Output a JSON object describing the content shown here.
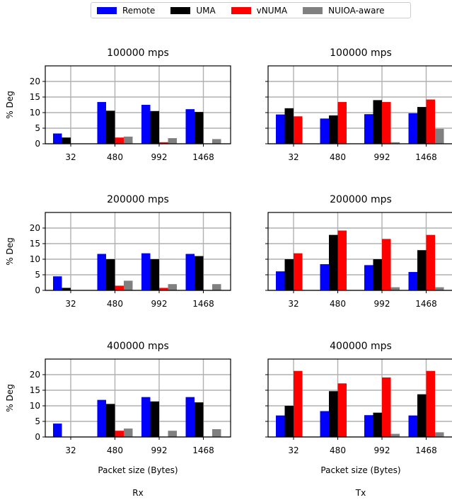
{
  "legend": {
    "items": [
      {
        "label": "Remote",
        "color": "#0000ff"
      },
      {
        "label": "UMA",
        "color": "#000000"
      },
      {
        "label": "vNUMA",
        "color": "#ff0000"
      },
      {
        "label": "NUIOA-aware",
        "color": "#808080"
      }
    ]
  },
  "columns": [
    "Rx",
    "Tx"
  ],
  "chart_data": [
    {
      "type": "bar",
      "title": "100000 mps",
      "side": "Rx",
      "categories": [
        "32",
        "480",
        "992",
        "1468"
      ],
      "ylabel": "% Deg",
      "xlabel": "",
      "ylim": [
        0,
        25
      ],
      "yticks": [
        0,
        5,
        10,
        15,
        20
      ],
      "grid": true,
      "series": [
        {
          "name": "Remote",
          "values": [
            3.3,
            13.4,
            12.5,
            11.1
          ]
        },
        {
          "name": "UMA",
          "values": [
            2.0,
            10.6,
            10.5,
            10.2
          ]
        },
        {
          "name": "vNUMA",
          "values": [
            0,
            2.0,
            0.5,
            0
          ]
        },
        {
          "name": "NUIOA-aware",
          "values": [
            0,
            2.3,
            1.8,
            1.5
          ]
        }
      ]
    },
    {
      "type": "bar",
      "title": "100000 mps",
      "side": "Tx",
      "categories": [
        "32",
        "480",
        "992",
        "1468"
      ],
      "ylabel": "",
      "xlabel": "",
      "ylim": [
        0,
        25
      ],
      "yticks": [
        0,
        5,
        10,
        15,
        20
      ],
      "grid": true,
      "series": [
        {
          "name": "Remote",
          "values": [
            9.4,
            8.1,
            9.5,
            9.8
          ]
        },
        {
          "name": "UMA",
          "values": [
            11.4,
            9.1,
            14.0,
            11.8
          ]
        },
        {
          "name": "vNUMA",
          "values": [
            8.8,
            13.4,
            13.4,
            14.2
          ]
        },
        {
          "name": "NUIOA-aware",
          "values": [
            0,
            0,
            0.5,
            4.8
          ]
        }
      ]
    },
    {
      "type": "bar",
      "title": "200000 mps",
      "side": "Rx",
      "categories": [
        "32",
        "480",
        "992",
        "1468"
      ],
      "ylabel": "% Deg",
      "xlabel": "",
      "ylim": [
        0,
        25
      ],
      "yticks": [
        0,
        5,
        10,
        15,
        20
      ],
      "grid": true,
      "series": [
        {
          "name": "Remote",
          "values": [
            4.5,
            11.7,
            11.9,
            11.7
          ]
        },
        {
          "name": "UMA",
          "values": [
            0.8,
            10.0,
            10.0,
            11.0
          ]
        },
        {
          "name": "vNUMA",
          "values": [
            0,
            1.5,
            0.8,
            0
          ]
        },
        {
          "name": "NUIOA-aware",
          "values": [
            0,
            3.1,
            2.0,
            2.0
          ]
        }
      ]
    },
    {
      "type": "bar",
      "title": "200000 mps",
      "side": "Tx",
      "categories": [
        "32",
        "480",
        "992",
        "1468"
      ],
      "ylabel": "",
      "xlabel": "",
      "ylim": [
        0,
        25
      ],
      "yticks": [
        0,
        5,
        10,
        15,
        20
      ],
      "grid": true,
      "series": [
        {
          "name": "Remote",
          "values": [
            6.1,
            8.4,
            8.1,
            5.9
          ]
        },
        {
          "name": "UMA",
          "values": [
            10.0,
            17.8,
            10.0,
            12.9
          ]
        },
        {
          "name": "vNUMA",
          "values": [
            11.9,
            19.2,
            16.5,
            17.8
          ]
        },
        {
          "name": "NUIOA-aware",
          "values": [
            0,
            0,
            1.0,
            1.0
          ]
        }
      ]
    },
    {
      "type": "bar",
      "title": "400000 mps",
      "side": "Rx",
      "categories": [
        "32",
        "480",
        "992",
        "1468"
      ],
      "ylabel": "% Deg",
      "xlabel": "Packet size (Bytes)",
      "ylim": [
        0,
        25
      ],
      "yticks": [
        0,
        5,
        10,
        15,
        20
      ],
      "grid": true,
      "series": [
        {
          "name": "Remote",
          "values": [
            4.3,
            11.9,
            12.8,
            12.8
          ]
        },
        {
          "name": "UMA",
          "values": [
            0,
            10.6,
            11.4,
            11.1
          ]
        },
        {
          "name": "vNUMA",
          "values": [
            0,
            2.0,
            0,
            0
          ]
        },
        {
          "name": "NUIOA-aware",
          "values": [
            0,
            2.7,
            2.0,
            2.5
          ]
        }
      ]
    },
    {
      "type": "bar",
      "title": "400000 mps",
      "side": "Tx",
      "categories": [
        "32",
        "480",
        "992",
        "1468"
      ],
      "ylabel": "",
      "xlabel": "Packet size (Bytes)",
      "ylim": [
        0,
        25
      ],
      "yticks": [
        0,
        5,
        10,
        15,
        20
      ],
      "grid": true,
      "series": [
        {
          "name": "Remote",
          "values": [
            6.9,
            8.3,
            7.0,
            6.9
          ]
        },
        {
          "name": "UMA",
          "values": [
            10.0,
            14.7,
            7.8,
            13.7
          ]
        },
        {
          "name": "vNUMA",
          "values": [
            21.2,
            17.2,
            19.1,
            21.2
          ]
        },
        {
          "name": "NUIOA-aware",
          "values": [
            0,
            0,
            1.0,
            1.5
          ]
        }
      ]
    }
  ]
}
